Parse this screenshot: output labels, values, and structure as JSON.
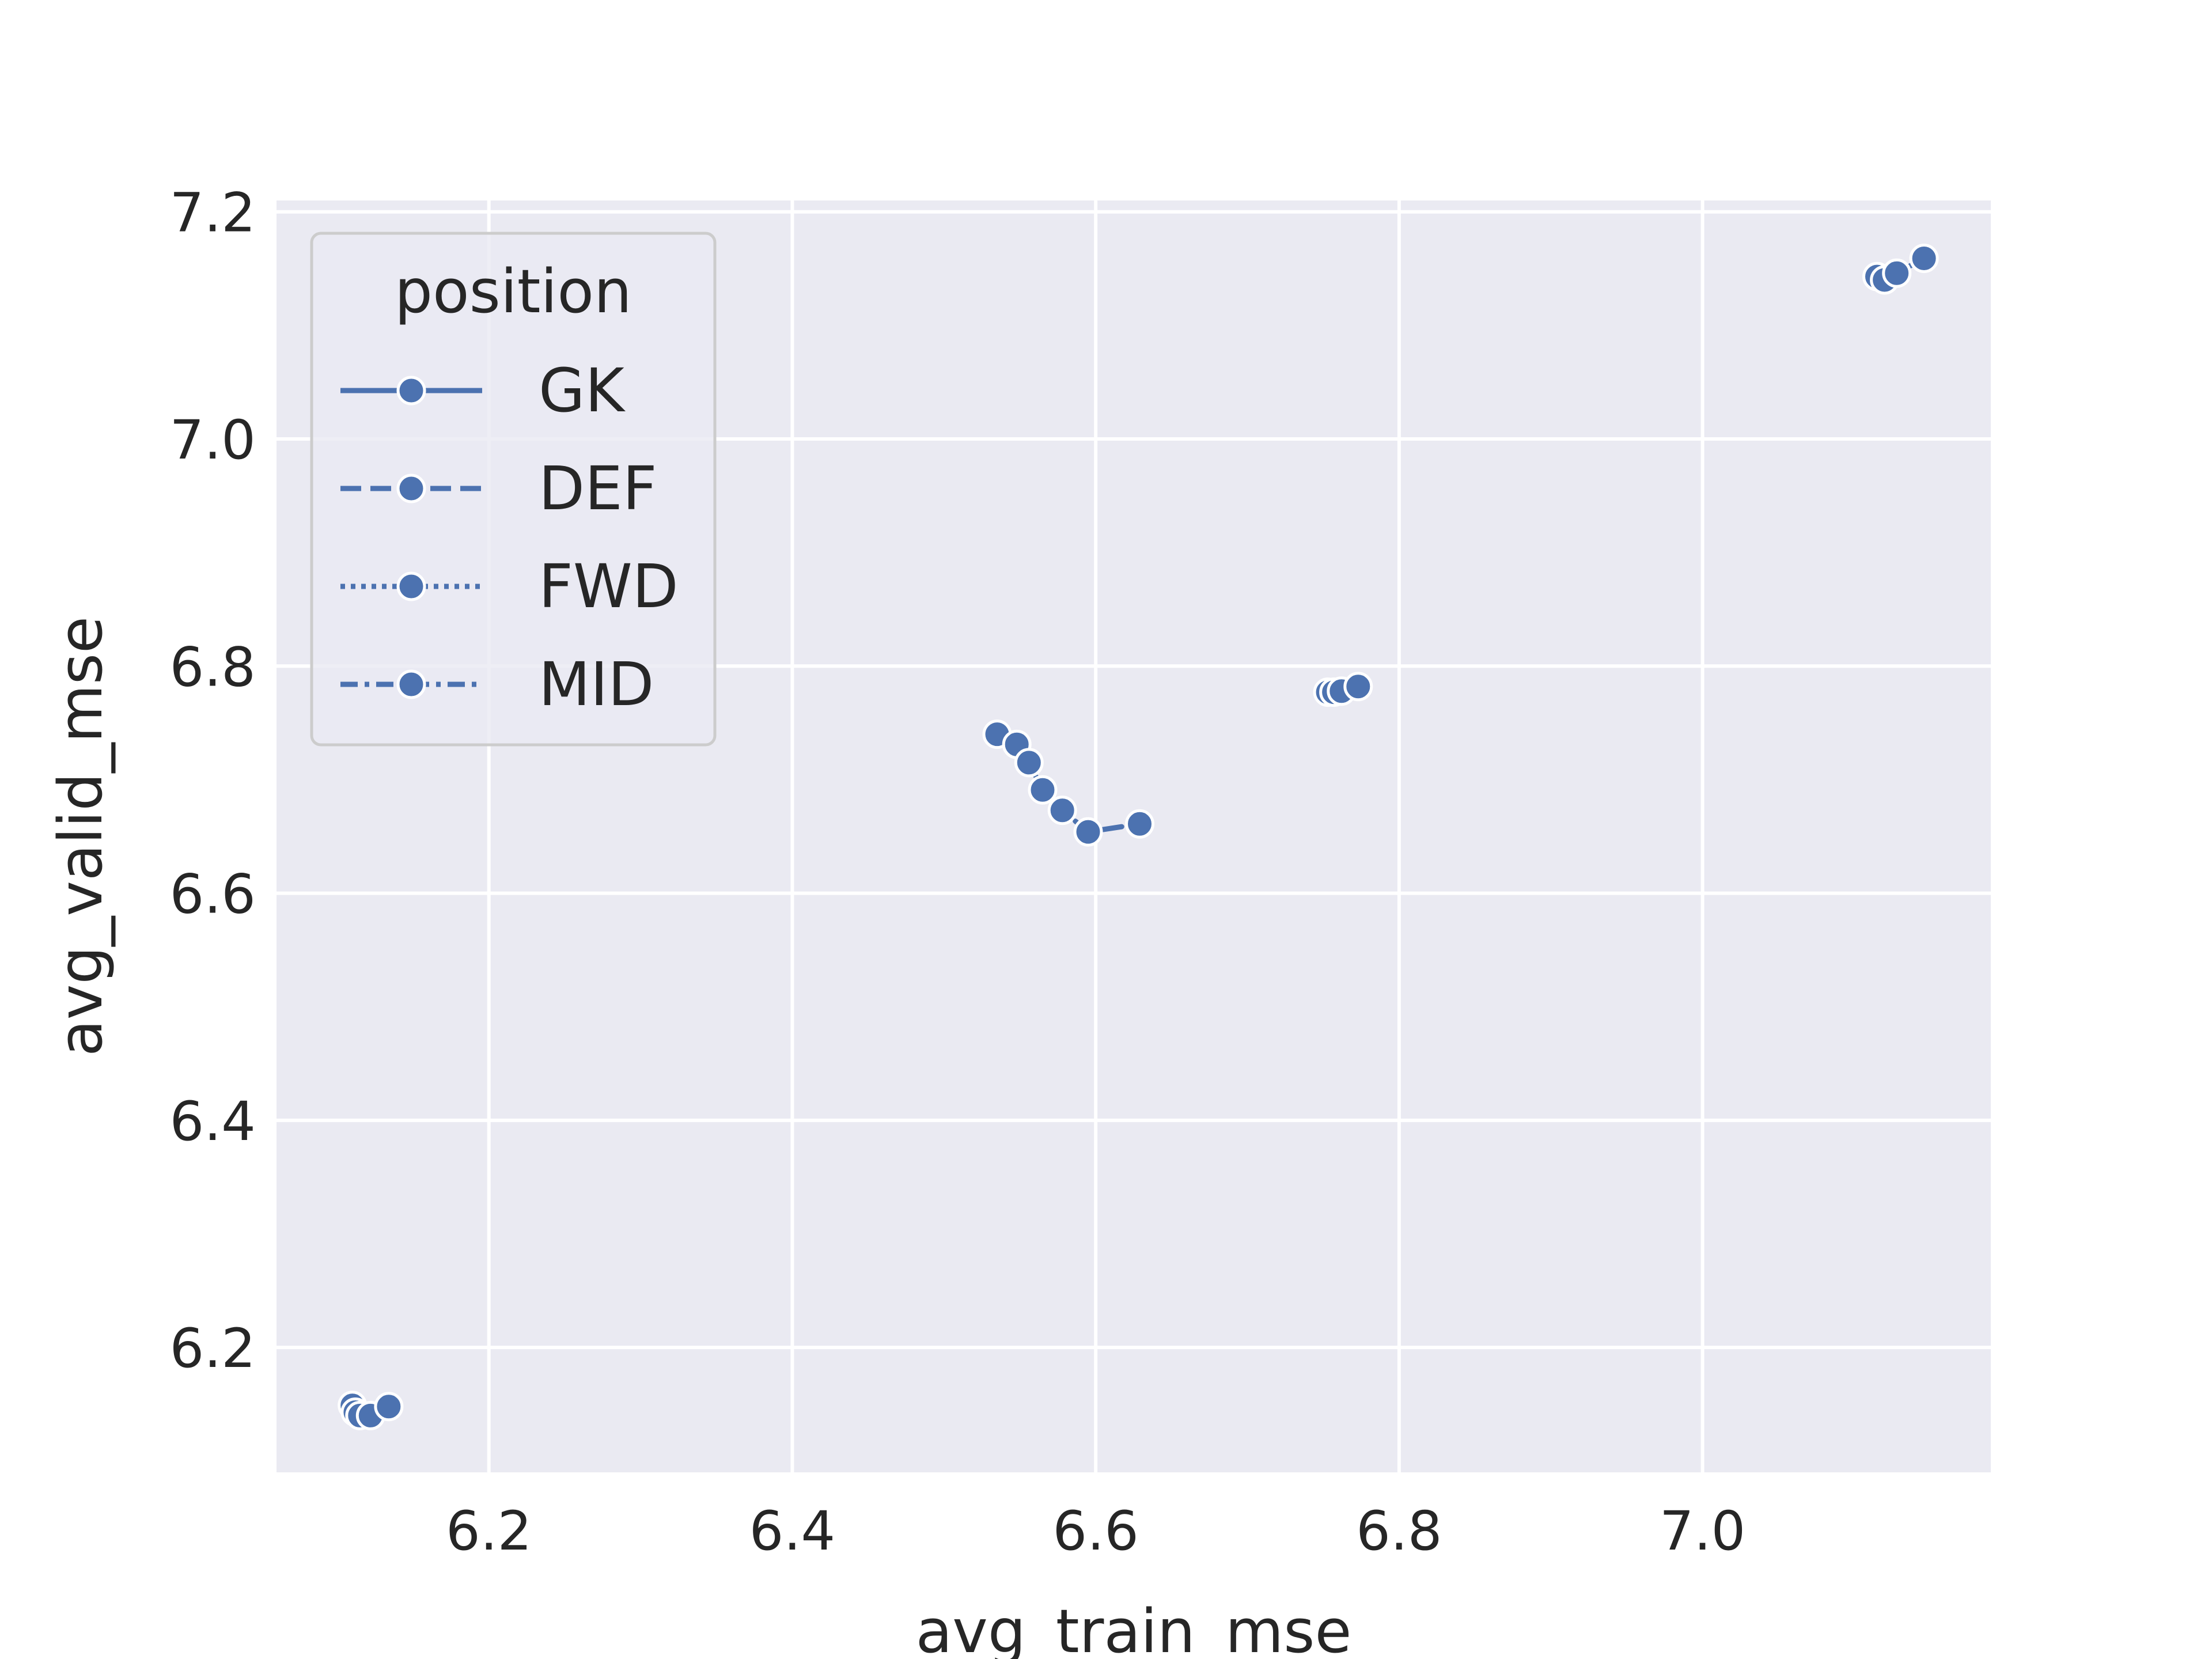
{
  "chart_data": {
    "type": "line",
    "title": "",
    "xlabel": "avg_train_mse",
    "ylabel": "avg_valid_mse",
    "xlim": [
      6.06,
      7.19
    ],
    "ylim": [
      6.09,
      7.21
    ],
    "x_ticks": [
      "6.2",
      "6.4",
      "6.6",
      "6.8",
      "7.0"
    ],
    "y_ticks": [
      "6.2",
      "6.4",
      "6.6",
      "6.8",
      "7.0",
      "7.2"
    ],
    "grid": true,
    "legend": {
      "title": "position",
      "placement": "top-left"
    },
    "series": [
      {
        "name": "GK",
        "line_style": "solid",
        "points": [
          [
            7.115,
            7.143
          ],
          [
            7.12,
            7.14
          ],
          [
            7.128,
            7.146
          ],
          [
            7.146,
            7.159
          ]
        ]
      },
      {
        "name": "DEF",
        "line_style": "dashed",
        "points": [
          [
            6.535,
            6.74
          ],
          [
            6.548,
            6.731
          ],
          [
            6.556,
            6.715
          ],
          [
            6.565,
            6.691
          ],
          [
            6.578,
            6.673
          ],
          [
            6.595,
            6.654
          ],
          [
            6.629,
            6.661
          ]
        ]
      },
      {
        "name": "FWD",
        "line_style": "dotted",
        "points": [
          [
            6.753,
            6.777
          ],
          [
            6.757,
            6.777
          ],
          [
            6.762,
            6.778
          ],
          [
            6.773,
            6.782
          ]
        ]
      },
      {
        "name": "MID",
        "line_style": "dashdot",
        "points": [
          [
            6.11,
            6.149
          ],
          [
            6.112,
            6.143
          ],
          [
            6.115,
            6.14
          ],
          [
            6.122,
            6.14
          ],
          [
            6.134,
            6.148
          ]
        ]
      }
    ],
    "colors": {
      "series": "#4c72b0",
      "plot_bg": "#eaeaf2",
      "grid": "#ffffff",
      "text": "#262626",
      "marker_edge": "#ffffff"
    }
  }
}
